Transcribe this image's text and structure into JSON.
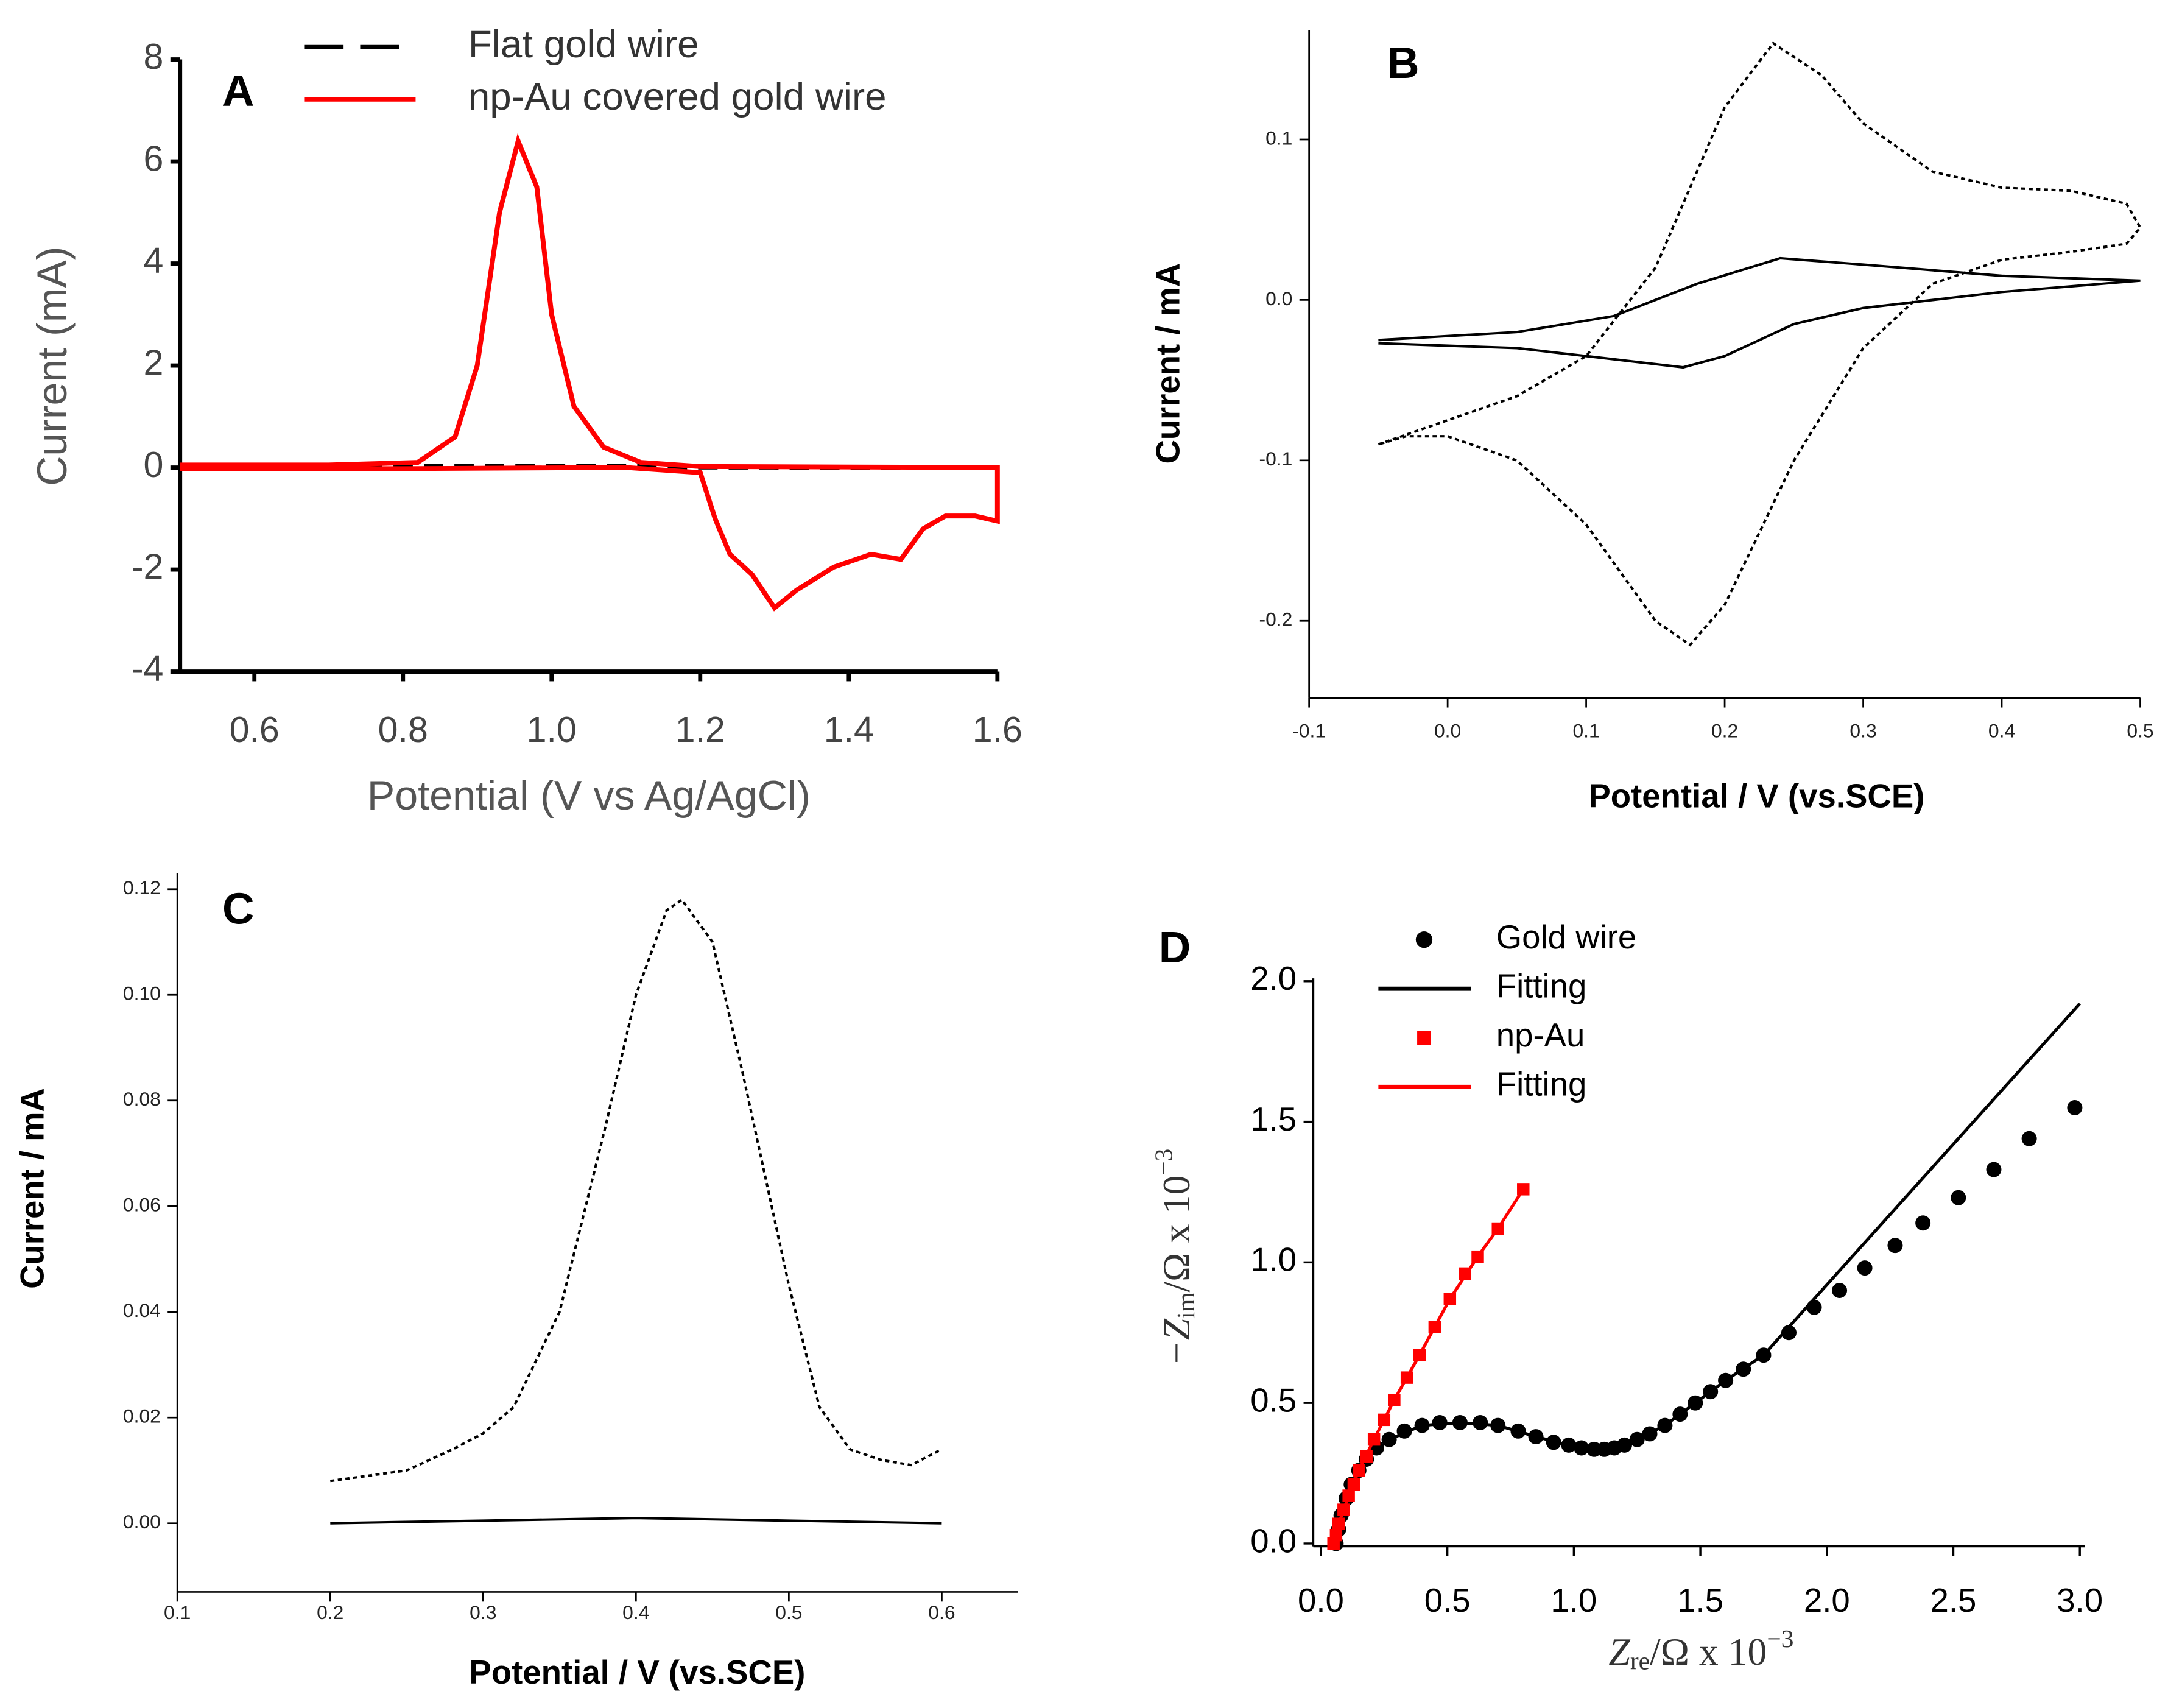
{
  "chart_data": [
    {
      "type": "line",
      "label": "A",
      "x_label": "Potential (V vs Ag/AgCl)",
      "y_label": "Current (mA)",
      "xlim": [
        0.5,
        1.6
      ],
      "xticks": [
        0.6,
        0.8,
        {
          "value": 1,
          "label": "1.0"
        },
        1.2,
        1.4,
        1.6
      ],
      "ylim": [
        -4,
        8
      ],
      "yticks": [
        -4,
        -2,
        0,
        2,
        4,
        6,
        8
      ],
      "grid": false,
      "series": [
        {
          "name": "Flat gold wire",
          "color": "#000000",
          "dash": "dashed",
          "x": [
            0.5,
            0.8,
            1.0,
            1.2,
            1.6
          ],
          "values": [
            0,
            0.02,
            0.03,
            0.01,
            0
          ]
        },
        {
          "name": "np-Au covered gold wire",
          "color": "#ff0000",
          "dash": "solid",
          "x": [
            0.5,
            0.7,
            0.82,
            0.87,
            0.9,
            0.93,
            0.955,
            0.98,
            1.0,
            1.03,
            1.07,
            1.12,
            1.2,
            1.6,
            1.6,
            1.57,
            1.53,
            1.5,
            1.47,
            1.43,
            1.38,
            1.33,
            1.3,
            1.27,
            1.24,
            1.22,
            1.2,
            1.1,
            0.8,
            0.5
          ],
          "values": [
            0.05,
            0.05,
            0.1,
            0.6,
            2,
            5,
            6.4,
            5.5,
            3,
            1.2,
            0.4,
            0.1,
            0.02,
            0,
            -1.05,
            -0.95,
            -0.95,
            -1.2,
            -1.8,
            -1.7,
            -1.95,
            -2.4,
            -2.75,
            -2.1,
            -1.7,
            -1,
            -0.1,
            0,
            -0.02,
            -0.02
          ]
        }
      ]
    },
    {
      "type": "line",
      "label": "B",
      "x_label": "Potential / V (vs.SCE)",
      "y_label": "Current / mA",
      "xlim": [
        -0.1,
        0.5
      ],
      "xticks": [
        -0.1,
        {
          "value": 0,
          "label": "0.0"
        },
        0.1,
        0.2,
        0.3,
        0.4,
        0.5
      ],
      "ylim": [
        -0.248,
        0.168
      ],
      "yticks": [
        -0.2,
        -0.1,
        {
          "value": 0,
          "label": "0.0"
        },
        0.1
      ],
      "grid": false,
      "series": [
        {
          "name": null,
          "color": "#000000",
          "dash": "dotted",
          "x": [
            -0.05,
            0.0,
            0.05,
            0.1,
            0.15,
            0.2,
            0.235,
            0.27,
            0.3,
            0.35,
            0.4,
            0.45,
            0.49,
            0.5,
            0.49,
            0.45,
            0.4,
            0.35,
            0.3,
            0.25,
            0.2,
            0.175,
            0.15,
            0.1,
            0.05,
            0.0,
            -0.03,
            -0.05
          ],
          "values": [
            -0.09,
            -0.075,
            -0.06,
            -0.035,
            0.02,
            0.12,
            0.16,
            0.14,
            0.11,
            0.08,
            0.07,
            0.068,
            0.06,
            0.045,
            0.035,
            0.03,
            0.025,
            0.01,
            -0.03,
            -0.1,
            -0.19,
            -0.215,
            -0.2,
            -0.14,
            -0.1,
            -0.085,
            -0.085,
            -0.09
          ]
        },
        {
          "name": null,
          "color": "#000000",
          "dash": "solid",
          "x": [
            -0.05,
            0.05,
            0.12,
            0.18,
            0.24,
            0.3,
            0.4,
            0.5,
            0.4,
            0.3,
            0.25,
            0.2,
            0.17,
            0.12,
            0.05,
            -0.05
          ],
          "values": [
            -0.025,
            -0.02,
            -0.01,
            0.01,
            0.026,
            0.022,
            0.015,
            0.012,
            0.005,
            -0.005,
            -0.015,
            -0.035,
            -0.042,
            -0.037,
            -0.03,
            -0.027
          ]
        }
      ]
    },
    {
      "type": "line",
      "label": "C",
      "x_label": "Potential / V (vs.SCE)",
      "y_label": "Current / mA",
      "xlim": [
        0.1,
        0.65
      ],
      "xticks": [
        0.1,
        0.2,
        0.3,
        0.4,
        0.5,
        0.6
      ],
      "ylim": [
        -0.013,
        0.123
      ],
      "yticks": [
        {
          "value": 0,
          "label": "0.00"
        },
        0.02,
        0.04,
        0.06,
        0.08,
        {
          "value": 0.1,
          "label": "0.10"
        },
        0.12
      ],
      "grid": false,
      "series": [
        {
          "name": null,
          "color": "#000000",
          "dash": "dotted",
          "x": [
            0.2,
            0.25,
            0.28,
            0.3,
            0.32,
            0.35,
            0.38,
            0.4,
            0.42,
            0.43,
            0.45,
            0.47,
            0.5,
            0.52,
            0.54,
            0.56,
            0.58,
            0.6
          ],
          "values": [
            0.008,
            0.01,
            0.014,
            0.017,
            0.022,
            0.04,
            0.075,
            0.1,
            0.116,
            0.118,
            0.11,
            0.085,
            0.045,
            0.022,
            0.014,
            0.012,
            0.011,
            0.014
          ]
        },
        {
          "name": null,
          "color": "#000000",
          "dash": "solid",
          "x": [
            0.2,
            0.3,
            0.4,
            0.5,
            0.6
          ],
          "values": [
            0,
            0.0005,
            0.001,
            0.0005,
            0
          ]
        }
      ]
    },
    {
      "type": "scatter",
      "label": "D",
      "x_label": {
        "base": "Z",
        "sub": "re",
        "rest": "/Ω x 10",
        "sup": "−3"
      },
      "y_label": {
        "base": "−Z",
        "sub": "im",
        "rest": "/Ω x 10",
        "sup": "−3"
      },
      "xlim": [
        -0.03,
        3.02
      ],
      "xticks": [
        {
          "value": 0,
          "label": "0.0"
        },
        0.5,
        {
          "value": 1,
          "label": "1.0"
        },
        1.5,
        {
          "value": 2,
          "label": "2.0"
        },
        2.5,
        {
          "value": 3,
          "label": "3.0"
        }
      ],
      "ylim": [
        -0.01,
        2.01
      ],
      "yticks": [
        {
          "value": 0,
          "label": "0.0"
        },
        0.5,
        {
          "value": 1,
          "label": "1.0"
        },
        1.5,
        {
          "value": 2,
          "label": "2.0"
        }
      ],
      "grid": false,
      "series": [
        {
          "name": "Gold wire",
          "color": "#000000",
          "marker": "circle",
          "x": [
            0.06,
            0.07,
            0.08,
            0.1,
            0.12,
            0.15,
            0.18,
            0.22,
            0.27,
            0.33,
            0.4,
            0.47,
            0.55,
            0.63,
            0.7,
            0.78,
            0.85,
            0.92,
            0.98,
            1.03,
            1.08,
            1.12,
            1.16,
            1.2,
            1.25,
            1.3,
            1.36,
            1.42,
            1.48,
            1.54,
            1.6,
            1.67,
            1.75,
            1.85,
            1.95,
            2.05,
            2.15,
            2.27,
            2.38,
            2.52,
            2.66,
            2.8,
            2.98
          ],
          "values": [
            0.0,
            0.05,
            0.1,
            0.16,
            0.21,
            0.26,
            0.3,
            0.34,
            0.37,
            0.4,
            0.42,
            0.43,
            0.43,
            0.43,
            0.42,
            0.4,
            0.38,
            0.36,
            0.35,
            0.34,
            0.335,
            0.335,
            0.34,
            0.35,
            0.37,
            0.39,
            0.42,
            0.46,
            0.5,
            0.54,
            0.58,
            0.62,
            0.67,
            0.75,
            0.84,
            0.9,
            0.98,
            1.06,
            1.14,
            1.23,
            1.33,
            1.44,
            1.55
          ]
        },
        {
          "name": "Fitting",
          "color": "#000000",
          "marker": "line",
          "x": [
            0.06,
            0.08,
            0.12,
            0.18,
            0.27,
            0.4,
            0.55,
            0.7,
            0.85,
            0.98,
            1.08,
            1.16,
            1.25,
            1.36,
            1.48,
            1.6,
            1.75,
            2.0,
            2.5,
            3.0
          ],
          "values": [
            0.0,
            0.1,
            0.21,
            0.3,
            0.37,
            0.42,
            0.43,
            0.42,
            0.38,
            0.35,
            0.335,
            0.34,
            0.37,
            0.42,
            0.5,
            0.58,
            0.67,
            0.92,
            1.42,
            1.92
          ]
        },
        {
          "name": "np-Au",
          "color": "#ff0000",
          "marker": "square",
          "x": [
            0.05,
            0.06,
            0.07,
            0.09,
            0.11,
            0.13,
            0.15,
            0.18,
            0.21,
            0.25,
            0.29,
            0.34,
            0.39,
            0.45,
            0.51,
            0.57,
            0.62,
            0.7,
            0.8
          ],
          "values": [
            0,
            0.03,
            0.07,
            0.12,
            0.17,
            0.21,
            0.26,
            0.31,
            0.37,
            0.44,
            0.51,
            0.59,
            0.67,
            0.77,
            0.87,
            0.96,
            1.02,
            1.12,
            1.26
          ]
        },
        {
          "name": "Fitting",
          "color": "#ff0000",
          "marker": "line",
          "x": [
            0.05,
            0.07,
            0.11,
            0.15,
            0.21,
            0.29,
            0.39,
            0.51,
            0.62,
            0.7,
            0.8
          ],
          "values": [
            0,
            0.07,
            0.17,
            0.26,
            0.37,
            0.51,
            0.67,
            0.87,
            1.02,
            1.12,
            1.26
          ]
        }
      ]
    }
  ]
}
